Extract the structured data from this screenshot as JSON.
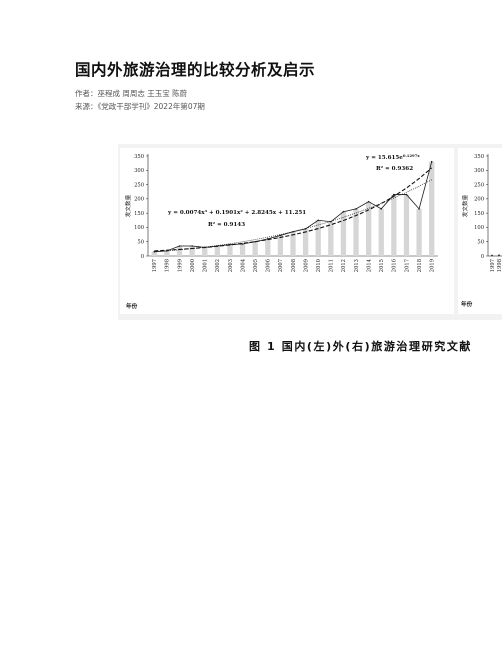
{
  "document": {
    "title": "国内外旅游治理的比较分析及启示",
    "authors": "作者：巫程成 周周志 王玉宝 陈蔚",
    "source": "来源：《党政干部学刊》2022年第07期",
    "figure_caption": "图 1   国内(左)外(右)旅游治理研究文献"
  },
  "chart_data": [
    {
      "type": "bar",
      "panel": "left",
      "ylabel": "发文数量",
      "xlabel": "年份",
      "ylim": [
        0,
        350
      ],
      "yticks": [
        0,
        50,
        100,
        150,
        200,
        250,
        300,
        350
      ],
      "grid": false,
      "categories": [
        "1997",
        "1998",
        "1999",
        "2000",
        "2001",
        "2002",
        "2003",
        "2004",
        "2005",
        "2006",
        "2007",
        "2008",
        "2009",
        "2010",
        "2011",
        "2012",
        "2013",
        "2014",
        "2015",
        "2016",
        "2017",
        "2018",
        "2019"
      ],
      "values": [
        15,
        18,
        35,
        35,
        30,
        35,
        40,
        42,
        50,
        60,
        72,
        85,
        95,
        125,
        120,
        155,
        165,
        190,
        165,
        215,
        215,
        165,
        330
      ],
      "annotations": [
        {
          "text": "y = 15.615e",
          "sup": "0.1297x"
        },
        {
          "text": "R² = 0.9362"
        },
        {
          "text": "y = 0.0074x³ + 0.1901x² + 2.8245x + 11.251"
        },
        {
          "text": "R² = 0.9143"
        }
      ],
      "colors": {
        "bar": "#d6d6d6",
        "line": "#1a1a1a"
      }
    },
    {
      "type": "bar",
      "panel": "right",
      "ylabel": "发文数量",
      "xlabel": "年份",
      "ylim": [
        0,
        350
      ],
      "yticks": [
        0,
        50,
        100,
        150,
        200,
        250,
        300,
        350
      ],
      "categories": [
        "1997",
        "1998"
      ],
      "values": [
        2,
        3
      ]
    }
  ]
}
